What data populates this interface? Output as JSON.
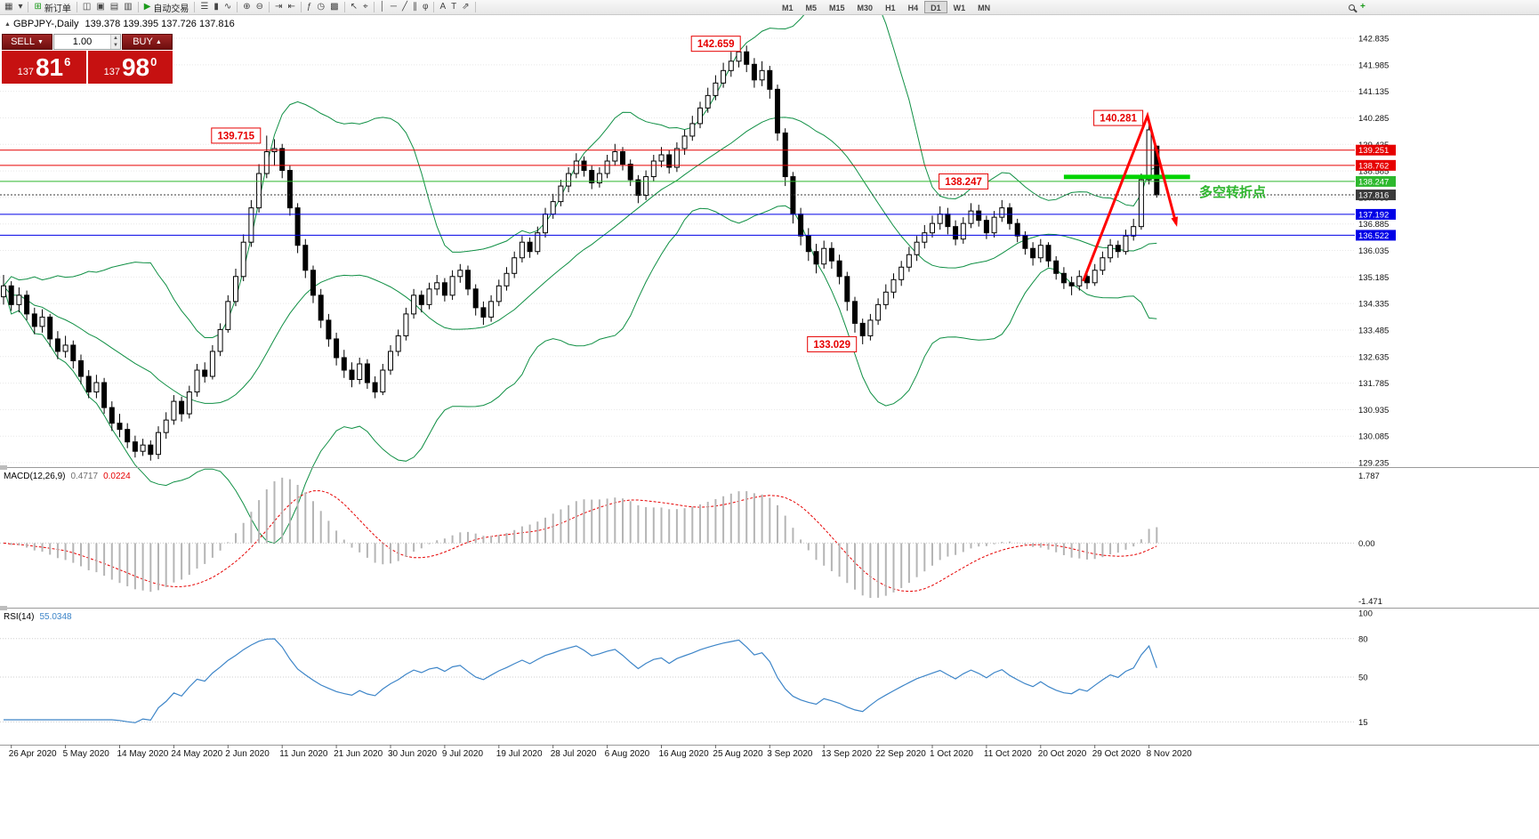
{
  "toolbar": {
    "items": [
      {
        "name": "chart-window-icon",
        "glyph": "▦"
      },
      {
        "name": "chart-dropdown-icon",
        "glyph": "▾"
      },
      {
        "type": "sep"
      },
      {
        "name": "new-order-button",
        "glyph": "⊞",
        "label": "新订单",
        "accent": "#1a9a1a"
      },
      {
        "type": "sep"
      },
      {
        "name": "charts-tile-icon",
        "glyph": "◫"
      },
      {
        "name": "charts-cascade-icon",
        "glyph": "▣"
      },
      {
        "name": "charts-tile-horizontal-icon",
        "glyph": "▤"
      },
      {
        "name": "charts-tile-vertical-icon",
        "glyph": "▥"
      },
      {
        "type": "sep"
      },
      {
        "name": "autotrading-button",
        "glyph": "▶",
        "label": "自动交易",
        "accent": "#1a9a1a"
      },
      {
        "type": "sep"
      },
      {
        "name": "chart-bars-type-icon",
        "glyph": "☰"
      },
      {
        "name": "chart-candles-type-icon",
        "glyph": "▮"
      },
      {
        "name": "chart-line-type-icon",
        "glyph": "∿"
      },
      {
        "type": "sep"
      },
      {
        "name": "zoom-in-icon",
        "glyph": "⊕"
      },
      {
        "name": "zoom-out-icon",
        "glyph": "⊖"
      },
      {
        "type": "sep"
      },
      {
        "name": "auto-scroll-icon",
        "glyph": "⇥"
      },
      {
        "name": "chart-shift-icon",
        "glyph": "⇤"
      },
      {
        "type": "sep"
      },
      {
        "name": "indicators-icon",
        "glyph": "ƒ"
      },
      {
        "name": "periods-dropdown-icon",
        "glyph": "◷"
      },
      {
        "name": "templates-icon",
        "glyph": "▩"
      },
      {
        "type": "sep"
      },
      {
        "name": "cursor-icon",
        "glyph": "↖"
      },
      {
        "name": "crosshair-icon",
        "glyph": "⌖"
      },
      {
        "type": "sep"
      },
      {
        "name": "vertical-line-icon",
        "glyph": "│"
      },
      {
        "name": "horizontal-line-icon",
        "glyph": "─"
      },
      {
        "name": "trendline-icon",
        "glyph": "╱"
      },
      {
        "name": "equidistant-channel-icon",
        "glyph": "∥"
      },
      {
        "name": "fibonacci-icon",
        "glyph": "φ"
      },
      {
        "type": "sep"
      },
      {
        "name": "text-icon",
        "glyph": "A"
      },
      {
        "name": "text-label-icon",
        "glyph": "T"
      },
      {
        "name": "arrows-icon",
        "glyph": "⇗"
      },
      {
        "type": "sep"
      }
    ],
    "timeframes": [
      {
        "label": "M1"
      },
      {
        "label": "M5"
      },
      {
        "label": "M15"
      },
      {
        "label": "M30"
      },
      {
        "label": "H1"
      },
      {
        "label": "H4"
      },
      {
        "label": "D1",
        "active": true
      },
      {
        "label": "W1"
      },
      {
        "label": "MN"
      }
    ],
    "add_icon_glyph": "+",
    "add_icon_color": "#1a9a1a"
  },
  "chart": {
    "title": {
      "symbol": "GBPJPY-,Daily",
      "ohlc": "139.378 139.395 137.726 137.816"
    },
    "trade_panel": {
      "sell_label": "SELL",
      "buy_label": "BUY",
      "sell_arrow": "▼",
      "buy_arrow": "▲",
      "volume": "1.00",
      "bid": {
        "prefix": "137",
        "big": "81",
        "sup": "6"
      },
      "ask": {
        "prefix": "137",
        "big": "98",
        "sup": "0"
      }
    },
    "annotation_text": "多空转折点",
    "annotation_color": "#2fb62f"
  },
  "chart_data": {
    "type": "candlestick",
    "symbol": "GBPJPY",
    "timeframe": "Daily",
    "y_axis": {
      "min": 129.235,
      "max": 142.835,
      "step": 0.85
    },
    "label_first_index": 1,
    "label_step": 7,
    "date_labels": [
      "26 Apr 2020",
      "5 May 2020",
      "14 May 2020",
      "24 May 2020",
      "2 Jun 2020",
      "11 Jun 2020",
      "21 Jun 2020",
      "30 Jun 2020",
      "9 Jul 2020",
      "19 Jul 2020",
      "28 Jul 2020",
      "6 Aug 2020",
      "16 Aug 2020",
      "25 Aug 2020",
      "3 Sep 2020",
      "13 Sep 2020",
      "22 Sep 2020",
      "1 Oct 2020",
      "11 Oct 2020",
      "20 Oct 2020",
      "29 Oct 2020",
      "8 Nov 2020"
    ],
    "candles": [
      [
        134.55,
        135.25,
        134.3,
        134.9
      ],
      [
        134.9,
        135.05,
        134.1,
        134.3
      ],
      [
        134.3,
        134.85,
        134.05,
        134.6
      ],
      [
        134.6,
        134.75,
        133.8,
        134.0
      ],
      [
        134.0,
        134.2,
        133.35,
        133.6
      ],
      [
        133.6,
        134.15,
        133.4,
        133.9
      ],
      [
        133.9,
        134.0,
        132.95,
        133.2
      ],
      [
        133.2,
        133.45,
        132.55,
        132.8
      ],
      [
        132.8,
        133.3,
        132.6,
        133.0
      ],
      [
        133.0,
        133.15,
        132.25,
        132.5
      ],
      [
        132.5,
        132.7,
        131.75,
        132.0
      ],
      [
        132.0,
        132.2,
        131.3,
        131.5
      ],
      [
        131.5,
        132.05,
        131.3,
        131.8
      ],
      [
        131.8,
        131.95,
        130.8,
        131.0
      ],
      [
        131.0,
        131.2,
        130.25,
        130.5
      ],
      [
        130.5,
        130.8,
        130.05,
        130.3
      ],
      [
        130.3,
        130.5,
        129.7,
        129.9
      ],
      [
        129.9,
        130.1,
        129.4,
        129.6
      ],
      [
        129.6,
        130.0,
        129.45,
        129.8
      ],
      [
        129.8,
        129.95,
        129.3,
        129.5
      ],
      [
        129.5,
        130.4,
        129.35,
        130.2
      ],
      [
        130.2,
        130.85,
        130.0,
        130.6
      ],
      [
        130.6,
        131.4,
        130.45,
        131.2
      ],
      [
        131.2,
        131.35,
        130.55,
        130.8
      ],
      [
        130.8,
        131.7,
        130.65,
        131.5
      ],
      [
        131.5,
        132.4,
        131.35,
        132.2
      ],
      [
        132.2,
        132.45,
        131.8,
        132.0
      ],
      [
        132.0,
        133.0,
        131.9,
        132.8
      ],
      [
        132.8,
        133.7,
        132.65,
        133.5
      ],
      [
        133.5,
        134.6,
        133.4,
        134.4
      ],
      [
        134.4,
        135.45,
        134.25,
        135.2
      ],
      [
        135.2,
        136.55,
        135.05,
        136.3
      ],
      [
        136.3,
        137.65,
        136.15,
        137.4
      ],
      [
        137.4,
        138.8,
        137.25,
        138.5
      ],
      [
        138.5,
        139.715,
        138.35,
        139.2
      ],
      [
        139.2,
        139.6,
        138.75,
        139.3
      ],
      [
        139.3,
        139.45,
        138.35,
        138.6
      ],
      [
        138.6,
        138.75,
        137.15,
        137.4
      ],
      [
        137.4,
        137.55,
        135.95,
        136.2
      ],
      [
        136.2,
        136.4,
        135.15,
        135.4
      ],
      [
        135.4,
        135.55,
        134.35,
        134.6
      ],
      [
        134.6,
        134.8,
        133.55,
        133.8
      ],
      [
        133.8,
        134.0,
        132.95,
        133.2
      ],
      [
        133.2,
        133.4,
        132.35,
        132.6
      ],
      [
        132.6,
        132.85,
        131.95,
        132.2
      ],
      [
        132.2,
        132.45,
        131.65,
        131.9
      ],
      [
        131.9,
        132.6,
        131.75,
        132.4
      ],
      [
        132.4,
        132.55,
        131.6,
        131.8
      ],
      [
        131.8,
        132.0,
        131.3,
        131.5
      ],
      [
        131.5,
        132.4,
        131.4,
        132.2
      ],
      [
        132.2,
        133.0,
        132.05,
        132.8
      ],
      [
        132.8,
        133.5,
        132.65,
        133.3
      ],
      [
        133.3,
        134.2,
        133.15,
        134.0
      ],
      [
        134.0,
        134.8,
        133.85,
        134.6
      ],
      [
        134.6,
        134.75,
        134.05,
        134.3
      ],
      [
        134.3,
        135.0,
        134.15,
        134.8
      ],
      [
        134.8,
        135.25,
        134.6,
        135.0
      ],
      [
        135.0,
        135.15,
        134.4,
        134.6
      ],
      [
        134.6,
        135.4,
        134.45,
        135.2
      ],
      [
        135.2,
        135.6,
        135.0,
        135.4
      ],
      [
        135.4,
        135.55,
        134.6,
        134.8
      ],
      [
        134.8,
        134.95,
        133.95,
        134.2
      ],
      [
        134.2,
        134.4,
        133.65,
        133.9
      ],
      [
        133.9,
        134.6,
        133.75,
        134.4
      ],
      [
        134.4,
        135.1,
        134.25,
        134.9
      ],
      [
        134.9,
        135.5,
        134.75,
        135.3
      ],
      [
        135.3,
        136.0,
        135.15,
        135.8
      ],
      [
        135.8,
        136.5,
        135.65,
        136.3
      ],
      [
        136.3,
        136.45,
        135.8,
        136.0
      ],
      [
        136.0,
        136.8,
        135.9,
        136.6
      ],
      [
        136.6,
        137.4,
        136.45,
        137.2
      ],
      [
        137.2,
        137.85,
        137.05,
        137.6
      ],
      [
        137.6,
        138.3,
        137.45,
        138.1
      ],
      [
        138.1,
        138.7,
        137.9,
        138.5
      ],
      [
        138.5,
        139.15,
        138.35,
        138.9
      ],
      [
        138.9,
        139.05,
        138.4,
        138.6
      ],
      [
        138.6,
        138.75,
        138.0,
        138.2
      ],
      [
        138.2,
        138.7,
        138.05,
        138.5
      ],
      [
        138.5,
        139.1,
        138.35,
        138.9
      ],
      [
        138.9,
        139.45,
        138.75,
        139.2
      ],
      [
        139.2,
        139.35,
        138.6,
        138.8
      ],
      [
        138.8,
        138.95,
        138.1,
        138.3
      ],
      [
        138.3,
        138.45,
        137.55,
        137.8
      ],
      [
        137.8,
        138.6,
        137.65,
        138.4
      ],
      [
        138.4,
        139.1,
        138.25,
        138.9
      ],
      [
        138.9,
        139.35,
        138.7,
        139.1
      ],
      [
        139.1,
        139.25,
        138.5,
        138.7
      ],
      [
        138.7,
        139.5,
        138.55,
        139.3
      ],
      [
        139.3,
        139.9,
        139.1,
        139.7
      ],
      [
        139.7,
        140.35,
        139.55,
        140.1
      ],
      [
        140.1,
        140.8,
        139.95,
        140.6
      ],
      [
        140.6,
        141.25,
        140.45,
        141.0
      ],
      [
        141.0,
        141.65,
        140.85,
        141.4
      ],
      [
        141.4,
        142.05,
        141.25,
        141.8
      ],
      [
        141.8,
        142.4,
        141.6,
        142.1
      ],
      [
        142.1,
        142.659,
        141.9,
        142.4
      ],
      [
        142.4,
        142.6,
        141.75,
        142.0
      ],
      [
        142.0,
        142.2,
        141.25,
        141.5
      ],
      [
        141.5,
        142.1,
        141.3,
        141.8
      ],
      [
        141.8,
        141.95,
        140.9,
        141.2
      ],
      [
        141.2,
        141.35,
        139.55,
        139.8
      ],
      [
        139.8,
        139.95,
        138.1,
        138.4
      ],
      [
        138.4,
        138.55,
        136.9,
        137.2
      ],
      [
        137.2,
        137.4,
        136.2,
        136.5
      ],
      [
        136.5,
        136.75,
        135.7,
        136.0
      ],
      [
        136.0,
        136.25,
        135.3,
        135.6
      ],
      [
        135.6,
        136.35,
        135.45,
        136.1
      ],
      [
        136.1,
        136.3,
        135.45,
        135.7
      ],
      [
        135.7,
        135.9,
        134.95,
        135.2
      ],
      [
        135.2,
        135.35,
        134.1,
        134.4
      ],
      [
        134.4,
        134.55,
        133.4,
        133.7
      ],
      [
        133.7,
        133.85,
        133.029,
        133.3
      ],
      [
        133.3,
        134.0,
        133.15,
        133.8
      ],
      [
        133.8,
        134.5,
        133.65,
        134.3
      ],
      [
        134.3,
        134.95,
        134.15,
        134.7
      ],
      [
        134.7,
        135.3,
        134.5,
        135.1
      ],
      [
        135.1,
        135.7,
        134.9,
        135.5
      ],
      [
        135.5,
        136.15,
        135.35,
        135.9
      ],
      [
        135.9,
        136.5,
        135.7,
        136.3
      ],
      [
        136.3,
        136.85,
        136.1,
        136.6
      ],
      [
        136.6,
        137.15,
        136.45,
        136.9
      ],
      [
        136.9,
        137.45,
        136.7,
        137.2
      ],
      [
        137.2,
        137.4,
        136.55,
        136.8
      ],
      [
        136.8,
        137.0,
        136.2,
        136.4
      ],
      [
        136.4,
        137.1,
        136.25,
        136.9
      ],
      [
        136.9,
        137.55,
        136.75,
        137.3
      ],
      [
        137.3,
        137.5,
        136.8,
        137.0
      ],
      [
        137.0,
        137.15,
        136.4,
        136.6
      ],
      [
        136.6,
        137.3,
        136.45,
        137.1
      ],
      [
        137.1,
        137.65,
        136.95,
        137.4
      ],
      [
        137.4,
        137.55,
        136.7,
        136.9
      ],
      [
        136.9,
        137.05,
        136.3,
        136.5
      ],
      [
        136.5,
        136.65,
        135.9,
        136.1
      ],
      [
        136.1,
        136.3,
        135.55,
        135.8
      ],
      [
        135.8,
        136.4,
        135.65,
        136.2
      ],
      [
        136.2,
        136.3,
        135.5,
        135.7
      ],
      [
        135.7,
        135.85,
        135.1,
        135.3
      ],
      [
        135.3,
        135.5,
        134.8,
        135.0
      ],
      [
        135.0,
        135.2,
        134.6,
        134.9
      ],
      [
        134.9,
        135.4,
        134.75,
        135.2
      ],
      [
        135.2,
        135.35,
        134.8,
        135.0
      ],
      [
        135.0,
        135.6,
        134.9,
        135.4
      ],
      [
        135.4,
        136.0,
        135.25,
        135.8
      ],
      [
        135.8,
        136.4,
        135.65,
        136.2
      ],
      [
        136.2,
        136.35,
        135.8,
        136.0
      ],
      [
        136.0,
        136.7,
        135.9,
        136.5
      ],
      [
        136.5,
        137.05,
        136.35,
        136.8
      ],
      [
        136.8,
        138.5,
        136.7,
        138.3
      ],
      [
        138.3,
        140.281,
        138.15,
        139.9
      ],
      [
        139.378,
        139.395,
        137.726,
        137.816
      ]
    ],
    "hlines": [
      {
        "price": 139.251,
        "color": "#e60000",
        "style": "solid"
      },
      {
        "price": 138.762,
        "color": "#e60000",
        "style": "solid"
      },
      {
        "price": 138.247,
        "color": "#2db82d",
        "style": "solid"
      },
      {
        "price": 137.816,
        "color": "#3a3a3a",
        "style": "dot"
      },
      {
        "price": 137.192,
        "color": "#0000e6",
        "style": "solid"
      },
      {
        "price": 136.522,
        "color": "#0000e6",
        "style": "solid"
      }
    ],
    "callouts": [
      {
        "text": "139.715",
        "i": 34,
        "price": 139.715
      },
      {
        "text": "142.659",
        "i": 96,
        "price": 142.659
      },
      {
        "text": "140.281",
        "i": 148,
        "price": 140.281
      },
      {
        "text": "138.247",
        "i": 128,
        "price": 138.247
      },
      {
        "text": "133.029",
        "i": 111,
        "price": 133.029
      }
    ],
    "drawings": {
      "green_segment": {
        "i1": 137,
        "i2": 153.3,
        "price": 138.39,
        "color": "#00d300",
        "width": 5
      },
      "red_arrow": {
        "points": [
          [
            139.5,
            135.05
          ],
          [
            147.8,
            140.35
          ],
          [
            151.5,
            136.9
          ]
        ],
        "color": "#ff0000",
        "width": 3
      }
    },
    "bollinger": {
      "period": 20,
      "deviation": 2,
      "color": "#0f8f44"
    },
    "macd": {
      "name": "MACD(12,26,9)",
      "main_value": "0.4717",
      "signal_value": "0.0224",
      "axis_top_label": "1.787",
      "axis_zero_label": "0.00",
      "axis_bottom_label": "-1.471",
      "bar_color": "#b5b5b5",
      "signal_color": "#e60000"
    },
    "rsi": {
      "name": "RSI(14)",
      "value": "55.0348",
      "axis_labels": [
        "100",
        "80",
        "50",
        "15"
      ],
      "levels": [
        80,
        50,
        15
      ],
      "color": "#3d85c8"
    }
  }
}
